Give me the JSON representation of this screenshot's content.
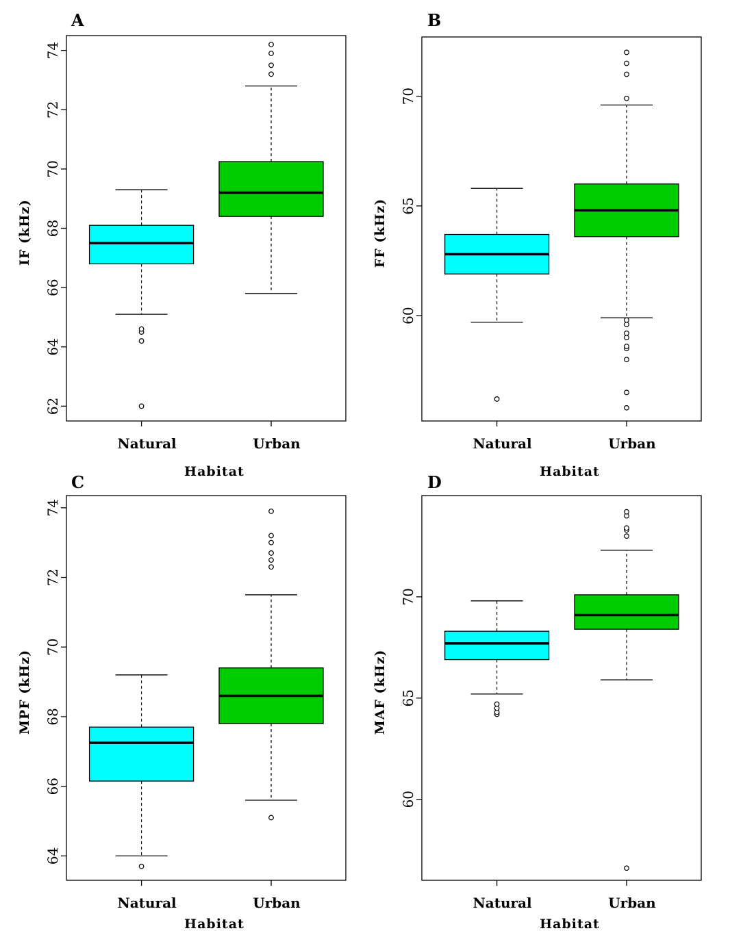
{
  "chart_data": [
    {
      "type": "boxplot",
      "panel_label": "A",
      "xlabel": "Habitat",
      "ylabel": "IF (kHz)",
      "ylim": [
        61.5,
        74.5
      ],
      "yticks": [
        62,
        64,
        66,
        68,
        70,
        72,
        74
      ],
      "categories": [
        "Natural",
        "Urban"
      ],
      "boxes": [
        {
          "category": "Natural",
          "color": "#00FFFF",
          "whisker_low": 65.1,
          "q1": 66.8,
          "median": 67.5,
          "q3": 68.1,
          "whisker_high": 69.3,
          "outliers": [
            62.0,
            64.2,
            64.5,
            64.6
          ]
        },
        {
          "category": "Urban",
          "color": "#00CC00",
          "whisker_low": 65.8,
          "q1": 68.4,
          "median": 69.2,
          "q3": 70.25,
          "whisker_high": 72.8,
          "outliers": [
            73.2,
            73.5,
            73.9,
            74.2
          ]
        }
      ]
    },
    {
      "type": "boxplot",
      "panel_label": "B",
      "xlabel": "Habitat",
      "ylabel": "FF (kHz)",
      "ylim": [
        55.2,
        72.7
      ],
      "yticks": [
        60,
        65,
        70
      ],
      "categories": [
        "Natural",
        "Urban"
      ],
      "boxes": [
        {
          "category": "Natural",
          "color": "#00FFFF",
          "whisker_low": 59.7,
          "q1": 61.9,
          "median": 62.8,
          "q3": 63.7,
          "whisker_high": 65.8,
          "outliers": [
            56.2
          ]
        },
        {
          "category": "Urban",
          "color": "#00CC00",
          "whisker_low": 59.9,
          "q1": 63.6,
          "median": 64.8,
          "q3": 66.0,
          "whisker_high": 69.6,
          "outliers": [
            55.8,
            56.5,
            58.0,
            58.5,
            58.6,
            59.0,
            59.2,
            59.6,
            59.8,
            69.9,
            71.0,
            71.5,
            72.0
          ]
        }
      ]
    },
    {
      "type": "boxplot",
      "panel_label": "C",
      "xlabel": "Habitat",
      "ylabel": "MPF (kHz)",
      "ylim": [
        63.3,
        74.35
      ],
      "yticks": [
        64,
        66,
        68,
        70,
        72,
        74
      ],
      "categories": [
        "Natural",
        "Urban"
      ],
      "boxes": [
        {
          "category": "Natural",
          "color": "#00FFFF",
          "whisker_low": 64.0,
          "q1": 66.15,
          "median": 67.25,
          "q3": 67.7,
          "whisker_high": 69.2,
          "outliers": [
            63.7
          ]
        },
        {
          "category": "Urban",
          "color": "#00CC00",
          "whisker_low": 65.6,
          "q1": 67.8,
          "median": 68.6,
          "q3": 69.4,
          "whisker_high": 71.5,
          "outliers": [
            65.1,
            72.3,
            72.5,
            72.7,
            73.0,
            73.2,
            73.9
          ]
        }
      ]
    },
    {
      "type": "boxplot",
      "panel_label": "D",
      "xlabel": "Habitat",
      "ylabel": "MAF (kHz)",
      "ylim": [
        56.0,
        75.0
      ],
      "yticks": [
        60,
        65,
        70
      ],
      "categories": [
        "Natural",
        "Urban"
      ],
      "boxes": [
        {
          "category": "Natural",
          "color": "#00FFFF",
          "whisker_low": 65.2,
          "q1": 66.9,
          "median": 67.7,
          "q3": 68.3,
          "whisker_high": 69.8,
          "outliers": [
            64.2,
            64.3,
            64.5,
            64.7
          ]
        },
        {
          "category": "Urban",
          "color": "#00CC00",
          "whisker_low": 65.9,
          "q1": 68.4,
          "median": 69.1,
          "q3": 70.1,
          "whisker_high": 72.3,
          "outliers": [
            56.6,
            73.0,
            73.3,
            73.4,
            74.0,
            74.2
          ]
        }
      ]
    }
  ]
}
